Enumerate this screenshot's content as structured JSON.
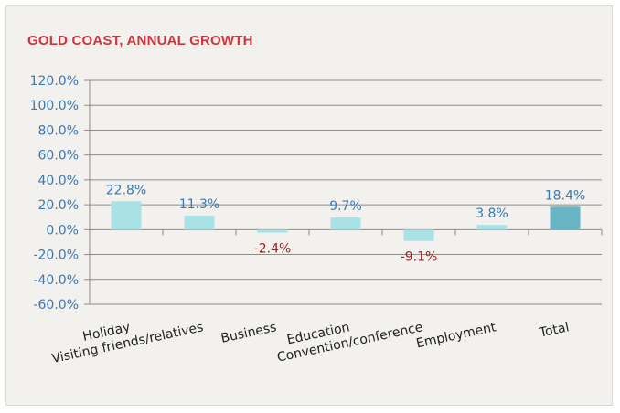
{
  "chart_data": {
    "type": "bar",
    "title": "GOLD COAST, ANNUAL GROWTH",
    "categories": [
      "Holiday",
      "Visiting friends/relatives",
      "Business",
      "Education",
      "Convention/conference",
      "Employment",
      "Total"
    ],
    "values": [
      22.8,
      11.3,
      -2.4,
      9.7,
      -9.1,
      3.8,
      18.4
    ],
    "data_labels": [
      "22.8%",
      "11.3%",
      "-2.4%",
      "9.7%",
      "-9.1%",
      "3.8%",
      "18.4%"
    ],
    "y_ticks": [
      "120.0%",
      "100.0%",
      "80.0%",
      "60.0%",
      "40.0%",
      "20.0%",
      "0.0%",
      "-20.0%",
      "-40.0%",
      "-60.0%"
    ],
    "ylim": [
      -60,
      120
    ],
    "grid": true,
    "legend": "none",
    "colors": {
      "bar": "#a9e1e5",
      "total_bar": "#69b5c4",
      "positive_label": "#3b78b5",
      "negative_label": "#9b1e1e",
      "title": "#d3333c",
      "grid": "#8c8c8c"
    }
  }
}
